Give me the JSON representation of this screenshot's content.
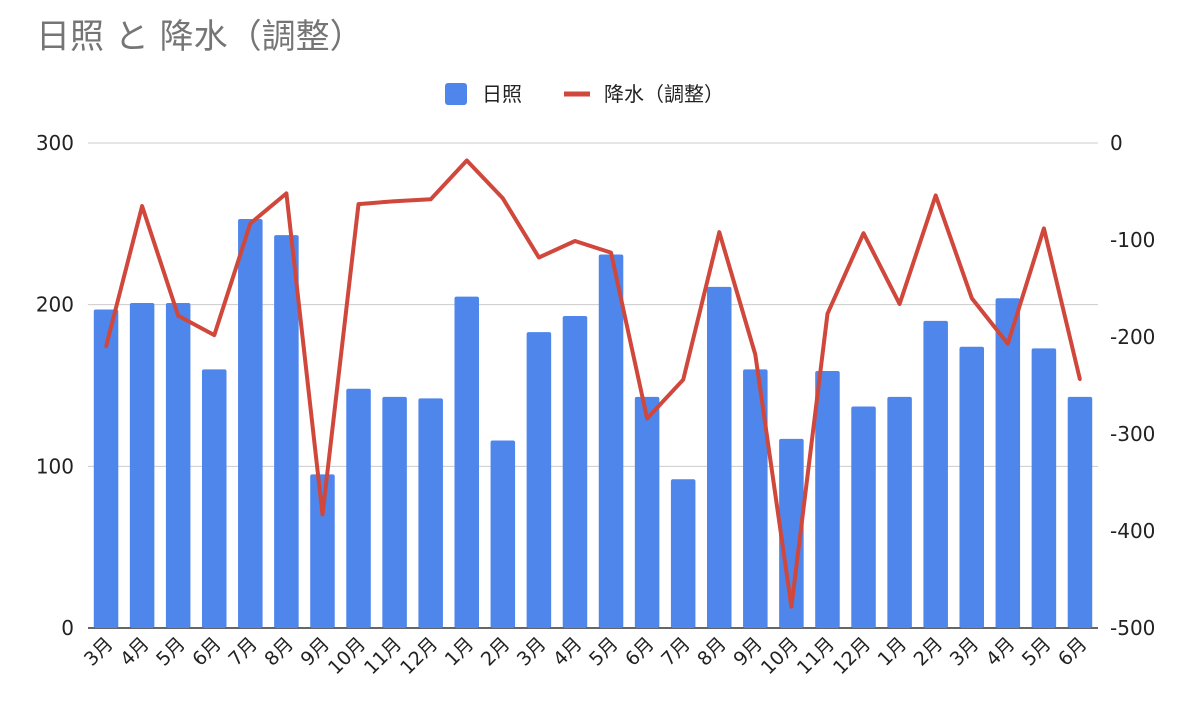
{
  "chart_data": {
    "type": "bar",
    "title": "日照 と 降水（調整）",
    "categories": [
      "3月",
      "4月",
      "5月",
      "6月",
      "7月",
      "8月",
      "9月",
      "10月",
      "11月",
      "12月",
      "1月",
      "2月",
      "3月",
      "4月",
      "5月",
      "6月",
      "7月",
      "8月",
      "9月",
      "10月",
      "11月",
      "12月",
      "1月",
      "2月",
      "3月",
      "4月",
      "5月",
      "6月"
    ],
    "series": [
      {
        "name": "日照",
        "type": "bar",
        "axis": "left",
        "color": "#4f86ec",
        "values": [
          197,
          201,
          201,
          160,
          253,
          243,
          95,
          148,
          143,
          142,
          205,
          116,
          183,
          193,
          231,
          143,
          92,
          211,
          160,
          117,
          159,
          137,
          143,
          190,
          174,
          204,
          173,
          143
        ]
      },
      {
        "name": "降水（調整）",
        "type": "line",
        "axis": "right",
        "color": "#d0473c",
        "values": [
          -210,
          -65,
          -178,
          -198,
          -83,
          -52,
          -383,
          -63,
          -60,
          -58,
          -18,
          -57,
          -118,
          -101,
          -113,
          -284,
          -244,
          -92,
          -218,
          -478,
          -176,
          -93,
          -166,
          -54,
          -160,
          -207,
          -88,
          -244
        ]
      }
    ],
    "y_left": {
      "range": [
        0,
        300
      ],
      "ticks": [
        "0",
        "100",
        "200",
        "300"
      ]
    },
    "y_right": {
      "range": [
        -500,
        0
      ],
      "ticks": [
        "-500",
        "-400",
        "-300",
        "-200",
        "-100",
        "0"
      ]
    },
    "grid": true,
    "legend": "top-center"
  }
}
